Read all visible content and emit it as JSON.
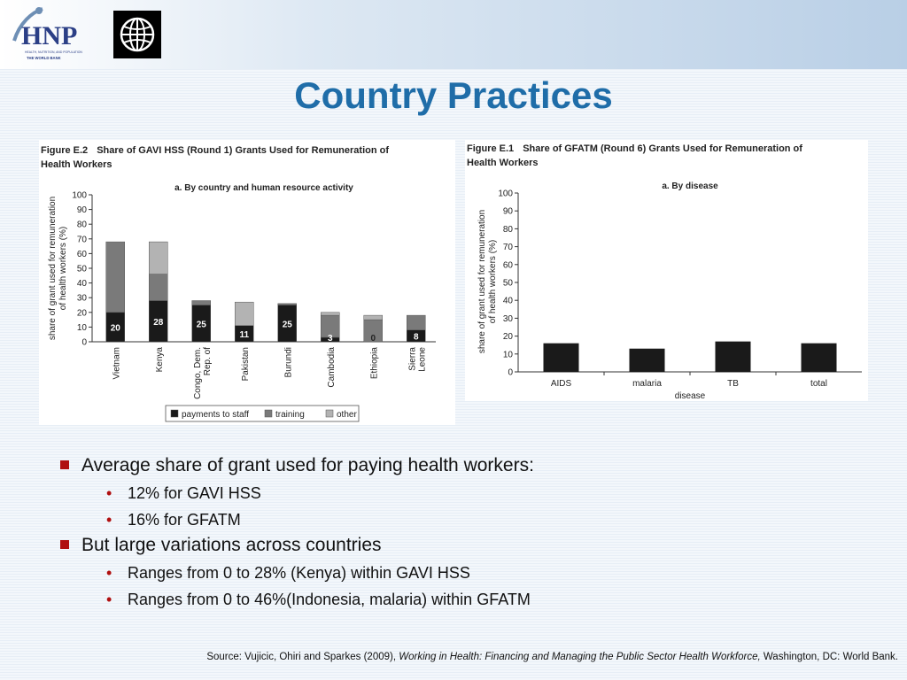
{
  "slide": {
    "title": "Country Practices"
  },
  "logos": {
    "hnp_icon": "hnp-logo-icon",
    "hnp_text": "HNP",
    "hnp_sub1": "HEALTH, NUTRITION, AND POPULATION",
    "hnp_sub2": "THE WORLD BANK",
    "wb_icon": "world-bank-globe-icon"
  },
  "figures": {
    "left": {
      "number": "Figure E.2",
      "caption_line1": "Share of GAVI HSS (Round 1) Grants Used for Remuneration of",
      "caption_line2": "Health Workers"
    },
    "right": {
      "number": "Figure E.1",
      "caption_line1": "Share of GFATM (Round 6) Grants Used for Remuneration of",
      "caption_line2": "Health Workers"
    }
  },
  "chart_data": [
    {
      "type": "bar",
      "stacked": true,
      "title": "a. By country and human resource activity",
      "ylabel_line1": "share of grant used for remuneration",
      "ylabel_line2": "of health workers (%)",
      "ylim": [
        0,
        100
      ],
      "yticks": [
        "100",
        "90",
        "80",
        "70",
        "60",
        "50",
        "40",
        "30",
        "20",
        "10",
        "0"
      ],
      "categories": [
        "Vietnam",
        "Kenya",
        "Congo, Dem. Rep. of",
        "Pakistan",
        "Burundi",
        "Cambodia",
        "Ethiopia",
        "Sierra Leone"
      ],
      "category_lines": [
        [
          "Vietnam"
        ],
        [
          "Kenya"
        ],
        [
          "Congo, Dem.",
          "Rep. of"
        ],
        [
          "Pakistan"
        ],
        [
          "Burundi"
        ],
        [
          "Cambodia"
        ],
        [
          "Ethiopia"
        ],
        [
          "Sierra",
          "Leone"
        ]
      ],
      "series": [
        {
          "name": "payments to staff",
          "color": "#1a1a1a",
          "values": [
            20,
            28,
            25,
            11,
            25,
            3,
            0,
            8
          ]
        },
        {
          "name": "training",
          "color": "#7a7a7a",
          "values": [
            48,
            18,
            3,
            0,
            1,
            15,
            15,
            10
          ]
        },
        {
          "name": "other",
          "color": "#b3b3b3",
          "values": [
            0,
            22,
            0,
            16,
            0,
            2,
            3,
            0
          ]
        }
      ],
      "data_labels": [
        "20",
        "28",
        "25",
        "11",
        "25",
        "3",
        "0",
        "8"
      ],
      "legend_position": "bottom",
      "grid": false
    },
    {
      "type": "bar",
      "title": "a. By disease",
      "ylabel_line1": "share of grant used for remuneration",
      "ylabel_line2": "of health workers (%)",
      "xlabel": "disease",
      "ylim": [
        0,
        100
      ],
      "yticks": [
        "100",
        "90",
        "80",
        "70",
        "60",
        "50",
        "40",
        "30",
        "20",
        "10",
        "0"
      ],
      "categories": [
        "AIDS",
        "malaria",
        "TB",
        "total"
      ],
      "values": [
        16,
        13,
        17,
        16
      ],
      "color": "#1a1a1a",
      "grid": false
    }
  ],
  "bullets": [
    {
      "text": "Average share of grant used for paying health workers:",
      "sub": [
        "12% for GAVI HSS",
        "16% for GFATM"
      ]
    },
    {
      "text": "But large variations across countries",
      "sub": [
        "Ranges from 0 to 28% (Kenya) within GAVI HSS",
        "Ranges from 0 to 46%(Indonesia, malaria) within GFATM"
      ]
    }
  ],
  "source": {
    "prefix": "Source:  Vujicic, Ohiri and Sparkes (2009), ",
    "title": "Working in Health: Financing and Managing the Public Sector Health Workforce,",
    "suffix": " Washington, DC: World Bank."
  },
  "colors": {
    "title": "#1f6da8",
    "bullet_marker": "#b01010"
  }
}
